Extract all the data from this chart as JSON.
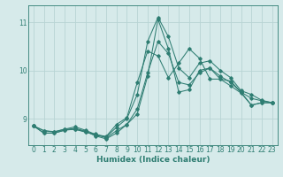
{
  "xlabel": "Humidex (Indice chaleur)",
  "bg_color": "#d6eaea",
  "line_color": "#2e7d72",
  "grid_color": "#b8d4d4",
  "xlim": [
    -0.5,
    23.5
  ],
  "ylim": [
    8.45,
    11.35
  ],
  "yticks": [
    9,
    10,
    11
  ],
  "xticks": [
    0,
    1,
    2,
    3,
    4,
    5,
    6,
    7,
    8,
    9,
    10,
    11,
    12,
    13,
    14,
    15,
    16,
    17,
    18,
    19,
    20,
    21,
    22,
    23
  ],
  "series": [
    [
      8.85,
      8.75,
      8.72,
      8.78,
      8.78,
      8.72,
      8.68,
      8.6,
      8.75,
      8.88,
      9.2,
      9.95,
      10.6,
      10.35,
      9.75,
      9.7,
      9.95,
      10.05,
      9.88,
      9.75,
      9.55,
      9.42,
      9.37,
      9.33
    ],
    [
      8.85,
      8.7,
      8.7,
      8.76,
      8.78,
      8.73,
      8.65,
      8.62,
      8.82,
      9.0,
      9.5,
      10.6,
      11.1,
      10.7,
      10.05,
      9.85,
      10.15,
      10.2,
      10.0,
      9.85,
      9.58,
      9.5,
      9.38,
      9.33
    ],
    [
      8.85,
      8.7,
      8.7,
      8.76,
      8.8,
      8.74,
      8.64,
      8.58,
      8.7,
      8.88,
      9.1,
      9.88,
      11.06,
      10.45,
      9.55,
      9.6,
      10.0,
      10.05,
      9.82,
      9.68,
      9.53,
      9.28,
      9.33,
      9.33
    ],
    [
      8.85,
      8.75,
      8.73,
      8.78,
      8.83,
      8.76,
      8.67,
      8.63,
      8.88,
      9.02,
      9.75,
      10.4,
      10.3,
      9.85,
      10.15,
      10.45,
      10.25,
      9.82,
      9.82,
      9.78,
      9.55,
      9.28,
      9.33,
      9.33
    ]
  ]
}
